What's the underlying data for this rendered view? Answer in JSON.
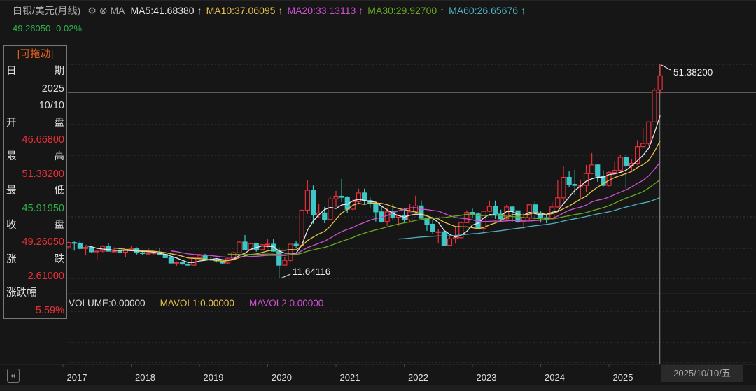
{
  "header": {
    "symbol": "白银/美元(月线)",
    "gear_icon": "gear-icon",
    "close_icon": "close-circle-icon",
    "ma_label": "MA",
    "ma_items": [
      {
        "text": "MA5:41.68380",
        "arrow": "↑",
        "color": "#e6e6e6"
      },
      {
        "text": "MA10:37.06095",
        "arrow": "↑",
        "color": "#e8c34a"
      },
      {
        "text": "MA20:33.13113",
        "arrow": "↑",
        "color": "#d050d0"
      },
      {
        "text": "MA30:29.92700",
        "arrow": "↑",
        "color": "#6aa820"
      },
      {
        "text": "MA60:26.65676",
        "arrow": "↑",
        "color": "#4fb0c0"
      }
    ],
    "price_change": "49.26050 -0.02%"
  },
  "info_panel": {
    "drag_label": "[可拖动]",
    "date_label": [
      "日",
      "期"
    ],
    "year": "2025",
    "date": "10/10",
    "open_label": [
      "开",
      "盘"
    ],
    "open": "46.66800",
    "high_label": [
      "最",
      "高"
    ],
    "high": "51.38200",
    "low_label": [
      "最",
      "低"
    ],
    "low": "45.91950",
    "close_label": [
      "收",
      "盘"
    ],
    "close": "49.26050",
    "change_label": [
      "涨",
      "跌"
    ],
    "change": "2.61000",
    "pct_label": "涨跌幅",
    "pct": "5.59%"
  },
  "volume_panel": {
    "volume": "VOLUME:0.00000",
    "mavol1": "MAVOL1:0.00000",
    "mavol2": "MAVOL2:0.00000",
    "dash": "—"
  },
  "footer": {
    "back_button": "«",
    "crosshair_date": "2025/10/10/五"
  },
  "colors": {
    "up": "#e8303a",
    "down": "#3cc8c8",
    "background": "#161616"
  },
  "chart_data": {
    "type": "candlestick",
    "period": "monthly",
    "start_month": "2017-01",
    "x_tick_labels": [
      "2017",
      "2018",
      "2019",
      "2020",
      "2021",
      "2022",
      "2023",
      "2024",
      "2025"
    ],
    "annotations": [
      {
        "label": "51.38200",
        "kind": "max high"
      },
      {
        "label": "11.64116",
        "kind": "min low"
      }
    ],
    "ma_periods": [
      5,
      10,
      20,
      30,
      60
    ],
    "ohlc": [
      [
        15.99,
        17.7,
        15.8,
        17.5
      ],
      [
        17.5,
        18.5,
        17.1,
        18.3
      ],
      [
        18.3,
        18.5,
        16.8,
        18.2
      ],
      [
        18.2,
        18.7,
        17.0,
        17.2
      ],
      [
        17.2,
        17.6,
        15.9,
        17.4
      ],
      [
        17.4,
        17.7,
        16.4,
        16.6
      ],
      [
        16.6,
        16.9,
        15.2,
        16.7
      ],
      [
        16.7,
        17.8,
        16.5,
        17.6
      ],
      [
        17.6,
        18.2,
        16.6,
        16.7
      ],
      [
        16.7,
        17.4,
        16.6,
        16.7
      ],
      [
        16.7,
        17.3,
        16.4,
        16.5
      ],
      [
        16.5,
        17.0,
        15.6,
        16.9
      ],
      [
        16.9,
        17.7,
        16.8,
        17.2
      ],
      [
        17.2,
        17.4,
        16.1,
        16.4
      ],
      [
        16.4,
        16.8,
        16.0,
        16.3
      ],
      [
        16.3,
        17.3,
        16.2,
        16.3
      ],
      [
        16.3,
        16.7,
        16.1,
        16.4
      ],
      [
        16.4,
        17.3,
        16.0,
        16.1
      ],
      [
        16.1,
        16.1,
        15.4,
        15.5
      ],
      [
        15.5,
        15.6,
        14.3,
        14.5
      ],
      [
        14.5,
        14.8,
        14.0,
        14.6
      ],
      [
        14.6,
        14.8,
        14.2,
        14.3
      ],
      [
        14.3,
        14.6,
        13.9,
        14.1
      ],
      [
        14.1,
        15.6,
        14.0,
        15.5
      ],
      [
        15.5,
        16.2,
        15.3,
        15.9
      ],
      [
        15.9,
        16.2,
        15.2,
        15.2
      ],
      [
        15.2,
        15.6,
        14.9,
        15.1
      ],
      [
        15.1,
        15.2,
        14.6,
        14.9
      ],
      [
        14.9,
        14.9,
        14.3,
        14.5
      ],
      [
        14.5,
        15.4,
        14.3,
        15.3
      ],
      [
        15.3,
        16.6,
        15.0,
        16.4
      ],
      [
        16.4,
        18.6,
        16.3,
        18.4
      ],
      [
        18.4,
        19.7,
        16.9,
        17.0
      ],
      [
        17.0,
        18.3,
        16.9,
        18.1
      ],
      [
        18.1,
        18.1,
        16.6,
        17.0
      ],
      [
        17.0,
        18.1,
        16.9,
        17.9
      ],
      [
        17.9,
        18.9,
        17.4,
        18.0
      ],
      [
        18.0,
        18.9,
        16.6,
        16.7
      ],
      [
        16.7,
        17.4,
        11.64116,
        14.1
      ],
      [
        14.1,
        15.6,
        14.0,
        15.0
      ],
      [
        15.0,
        18.0,
        14.7,
        18.0
      ],
      [
        18.0,
        18.6,
        17.3,
        17.8
      ],
      [
        17.8,
        24.4,
        17.7,
        24.3
      ],
      [
        24.3,
        29.84,
        23.6,
        28.0
      ],
      [
        28.0,
        28.9,
        21.8,
        23.4
      ],
      [
        23.4,
        25.4,
        22.9,
        23.8
      ],
      [
        23.8,
        24.9,
        21.9,
        22.6
      ],
      [
        22.6,
        26.9,
        22.5,
        26.4
      ],
      [
        26.4,
        27.9,
        24.9,
        26.9
      ],
      [
        26.9,
        30.1,
        25.8,
        26.7
      ],
      [
        26.7,
        26.9,
        23.8,
        24.5
      ],
      [
        24.5,
        26.5,
        24.1,
        25.9
      ],
      [
        25.9,
        28.3,
        25.6,
        27.5
      ],
      [
        27.5,
        28.3,
        25.5,
        26.1
      ],
      [
        26.1,
        26.7,
        24.8,
        25.5
      ],
      [
        25.5,
        25.6,
        22.2,
        24.0
      ],
      [
        24.0,
        24.9,
        22.0,
        22.2
      ],
      [
        22.2,
        24.8,
        21.4,
        24.0
      ],
      [
        24.0,
        25.4,
        22.5,
        23.0
      ],
      [
        23.0,
        23.4,
        21.4,
        23.3
      ],
      [
        23.3,
        24.7,
        22.0,
        22.5
      ],
      [
        22.5,
        25.5,
        22.0,
        24.0
      ],
      [
        24.0,
        27.0,
        23.8,
        25.1
      ],
      [
        25.1,
        26.1,
        22.7,
        22.8
      ],
      [
        22.8,
        22.9,
        20.5,
        21.7
      ],
      [
        21.7,
        22.5,
        19.9,
        20.3
      ],
      [
        20.3,
        20.8,
        18.2,
        20.3
      ],
      [
        20.3,
        20.9,
        17.6,
        17.8
      ],
      [
        17.8,
        19.6,
        17.6,
        19.0
      ],
      [
        19.0,
        21.2,
        18.1,
        19.2
      ],
      [
        19.2,
        22.2,
        18.9,
        22.0
      ],
      [
        22.0,
        24.3,
        21.9,
        23.9
      ],
      [
        23.9,
        24.6,
        22.8,
        23.6
      ],
      [
        23.6,
        23.9,
        20.8,
        20.9
      ],
      [
        20.9,
        24.2,
        19.9,
        24.1
      ],
      [
        24.1,
        26.1,
        24.0,
        25.0
      ],
      [
        25.0,
        26.1,
        22.7,
        23.6
      ],
      [
        23.6,
        24.4,
        22.1,
        22.7
      ],
      [
        22.7,
        25.3,
        22.5,
        24.9
      ],
      [
        24.9,
        25.0,
        22.2,
        24.2
      ],
      [
        24.2,
        24.2,
        22.0,
        22.2
      ],
      [
        22.2,
        23.7,
        20.7,
        22.9
      ],
      [
        22.9,
        25.5,
        22.5,
        25.3
      ],
      [
        25.3,
        25.9,
        22.5,
        23.8
      ],
      [
        23.8,
        24.1,
        22.0,
        22.9
      ],
      [
        22.9,
        23.6,
        21.9,
        22.7
      ],
      [
        22.7,
        25.8,
        22.5,
        24.9
      ],
      [
        24.9,
        29.8,
        24.8,
        26.6
      ],
      [
        26.6,
        32.5,
        26.0,
        30.4
      ],
      [
        30.4,
        31.5,
        28.6,
        29.1
      ],
      [
        29.1,
        31.8,
        27.1,
        28.9
      ],
      [
        28.9,
        30.0,
        26.5,
        28.9
      ],
      [
        28.9,
        32.7,
        27.7,
        31.1
      ],
      [
        31.1,
        34.9,
        31.0,
        32.7
      ],
      [
        32.7,
        32.8,
        29.6,
        30.6
      ],
      [
        30.6,
        31.7,
        28.7,
        28.9
      ],
      [
        28.9,
        31.5,
        28.7,
        31.3
      ],
      [
        31.3,
        33.4,
        31.1,
        31.7
      ],
      [
        31.7,
        34.6,
        31.2,
        34.1
      ],
      [
        34.1,
        34.6,
        28.3,
        32.6
      ],
      [
        32.6,
        33.7,
        31.6,
        33.0
      ],
      [
        33.0,
        37.3,
        32.7,
        36.1
      ],
      [
        36.1,
        39.5,
        36.0,
        36.7
      ],
      [
        36.7,
        40.8,
        36.2,
        40.7
      ],
      [
        40.7,
        47.0,
        40.6,
        46.6
      ],
      [
        46.668,
        51.382,
        45.9195,
        49.2605
      ]
    ]
  }
}
